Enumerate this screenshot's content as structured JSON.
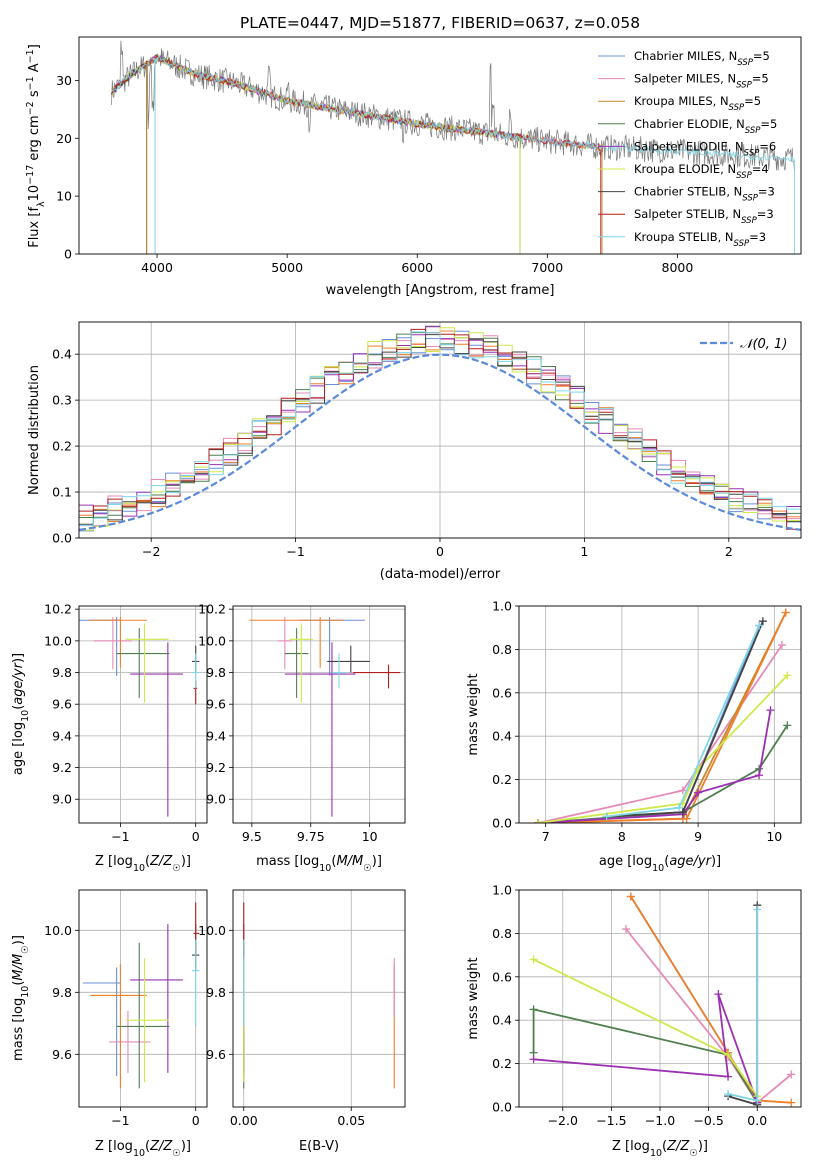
{
  "title": "PLATE=0447, MJD=51877, FIBERID=0637, z=0.058",
  "colors": {
    "Chabrier MILES": "#6a8fd6",
    "Salpeter MILES": "#e68ab8",
    "Kroupa MILES": "#c68a2e",
    "Chabrier ELODIE": "#4f7f4f",
    "Salpeter ELODIE": "#9b30b2",
    "Kroupa ELODIE": "#cfe84a",
    "Chabrier STELIB": "#444444",
    "Salpeter STELIB": "#b01e1e",
    "Kroupa STELIB": "#7fd6e6",
    "orange": "#f07f2a",
    "normal": "#5b8ad8"
  },
  "chart_data": [
    {
      "id": "spectrum",
      "type": "line",
      "xlabel": "wavelength [Angstrom, rest frame]",
      "ylabel": "Flux [f_λ 10^-17 erg cm^-2 s^-1 A^-1]",
      "xlim": [
        3400,
        8950
      ],
      "ylim": [
        0,
        37.5
      ],
      "xticks": [
        4000,
        5000,
        6000,
        7000,
        8000
      ],
      "yticks": [
        0,
        10,
        20,
        30
      ],
      "grid": false,
      "legend_position": "top-right",
      "legend": [
        {
          "model": "Chabrier MILES",
          "nssp": "5"
        },
        {
          "model": "Salpeter MILES",
          "nssp": "5"
        },
        {
          "model": "Kroupa MILES",
          "nssp": "5"
        },
        {
          "model": "Chabrier ELODIE",
          "nssp": "5"
        },
        {
          "model": "Salpeter ELODIE",
          "nssp": "6"
        },
        {
          "model": "Kroupa ELODIE",
          "nssp": "4"
        },
        {
          "model": "Chabrier STELIB",
          "nssp": "3"
        },
        {
          "model": "Salpeter STELIB",
          "nssp": "3"
        },
        {
          "model": "Kroupa STELIB",
          "nssp": "3"
        }
      ],
      "continuum": {
        "x": [
          3650,
          3800,
          4000,
          4300,
          4600,
          5000,
          5500,
          6000,
          6500,
          7000,
          7400,
          8000,
          8500,
          8900
        ],
        "y": [
          28,
          31,
          34,
          31,
          29.5,
          26.5,
          24.5,
          22.5,
          21,
          19.5,
          18.5,
          17.8,
          17,
          16.5
        ]
      },
      "model_ranges": [
        [
          3650,
          7420
        ],
        [
          3650,
          7420
        ],
        [
          3650,
          7420
        ],
        [
          3650,
          6790
        ],
        [
          3650,
          6790
        ],
        [
          3650,
          6790
        ],
        [
          3650,
          3920
        ],
        [
          3650,
          7410
        ],
        [
          3650,
          8900
        ]
      ]
    },
    {
      "id": "residuals",
      "type": "step",
      "xlabel": "(data-model)/error",
      "ylabel": "Normed distribution",
      "xlim": [
        -2.5,
        2.5
      ],
      "ylim": [
        0,
        0.47
      ],
      "xticks": [
        -2,
        -1,
        0,
        1,
        2
      ],
      "yticks": [
        0.0,
        0.1,
        0.2,
        0.3,
        0.4
      ],
      "grid": true,
      "legend": "N(0,1)"
    },
    {
      "id": "age_vs_Z",
      "type": "errorbar",
      "xlabel": "Z [log10(Z/Z☉)]",
      "ylabel": "age  [log10(age/yr)]",
      "xlim": [
        -1.55,
        0.15
      ],
      "ylim": [
        8.85,
        10.22
      ],
      "xticks": [
        -1,
        0
      ],
      "yticks": [
        9.0,
        9.2,
        9.4,
        9.6,
        9.8,
        10.0,
        10.2
      ],
      "points": [
        {
          "x": -1.05,
          "xe": [
            0.5,
            0.05
          ],
          "y": 10.13,
          "ye": [
            0.35,
            0.02
          ],
          "c": "Chabrier MILES"
        },
        {
          "x": -1.1,
          "xe": [
            0.25,
            0.25
          ],
          "y": 10.0,
          "ye": [
            0.18,
            0.15
          ],
          "c": "Salpeter MILES"
        },
        {
          "x": -1.0,
          "xe": [
            0.42,
            0.35
          ],
          "y": 10.13,
          "ye": [
            0.3,
            0.02
          ],
          "c": "orange"
        },
        {
          "x": -0.75,
          "xe": [
            0.3,
            0.4
          ],
          "y": 9.92,
          "ye": [
            0.28,
            0.16
          ],
          "c": "Chabrier ELODIE"
        },
        {
          "x": -0.37,
          "xe": [
            0.5,
            0.2
          ],
          "y": 9.79,
          "ye": [
            0.9,
            0.2
          ],
          "c": "Salpeter ELODIE"
        },
        {
          "x": -0.68,
          "xe": [
            0.25,
            0.32
          ],
          "y": 10.01,
          "ye": [
            0.4,
            0.1
          ],
          "c": "Kroupa ELODIE"
        },
        {
          "x": 0.0,
          "xe": [
            0.05,
            0.05
          ],
          "y": 9.87,
          "ye": [
            0.07,
            0.1
          ],
          "c": "Chabrier STELIB"
        },
        {
          "x": 0.0,
          "xe": [
            0.03,
            0.02
          ],
          "y": 9.7,
          "ye": [
            0.1,
            0.05
          ],
          "c": "Salpeter STELIB"
        },
        {
          "x": 0.0,
          "xe": [
            0.05,
            0.05
          ],
          "y": 9.8,
          "ye": [
            0.1,
            0.12
          ],
          "c": "Kroupa STELIB"
        }
      ]
    },
    {
      "id": "age_vs_mass",
      "type": "errorbar",
      "xlabel": "mass [log10(M/M☉)]",
      "ylabel": "",
      "xlim": [
        9.42,
        10.15
      ],
      "ylim": [
        8.85,
        10.22
      ],
      "xticks": [
        9.5,
        9.75,
        10.0
      ],
      "yticks": [
        9.0,
        9.2,
        9.4,
        9.6,
        9.8,
        10.0,
        10.2
      ],
      "points": [
        {
          "x": 9.83,
          "xe": [
            0.13,
            0.15
          ],
          "y": 10.13,
          "ye": [
            0.35,
            0.02
          ],
          "c": "Chabrier MILES"
        },
        {
          "x": 9.64,
          "xe": [
            0.03,
            0.03
          ],
          "y": 10.0,
          "ye": [
            0.18,
            0.15
          ],
          "c": "Salpeter MILES"
        },
        {
          "x": 9.79,
          "xe": [
            0.3,
            0.1
          ],
          "y": 10.13,
          "ye": [
            0.3,
            0.02
          ],
          "c": "orange"
        },
        {
          "x": 9.69,
          "xe": [
            0.05,
            0.05
          ],
          "y": 9.92,
          "ye": [
            0.28,
            0.16
          ],
          "c": "Chabrier ELODIE"
        },
        {
          "x": 9.84,
          "xe": [
            0.2,
            0.1
          ],
          "y": 9.79,
          "ye": [
            0.9,
            0.2
          ],
          "c": "Salpeter ELODIE"
        },
        {
          "x": 9.71,
          "xe": [
            0.05,
            0.05
          ],
          "y": 10.01,
          "ye": [
            0.4,
            0.1
          ],
          "c": "Kroupa ELODIE"
        },
        {
          "x": 9.92,
          "xe": [
            0.1,
            0.08
          ],
          "y": 9.87,
          "ye": [
            0.07,
            0.1
          ],
          "c": "Chabrier STELIB"
        },
        {
          "x": 10.08,
          "xe": [
            0.15,
            0.05
          ],
          "y": 9.8,
          "ye": [
            0.1,
            0.05
          ],
          "c": "Salpeter STELIB"
        },
        {
          "x": 9.87,
          "xe": [
            0.03,
            0.03
          ],
          "y": 9.8,
          "ye": [
            0.1,
            0.12
          ],
          "c": "Kroupa STELIB"
        }
      ]
    },
    {
      "id": "mw_vs_age",
      "type": "line",
      "xlabel": "age  [log10(age/yr)]",
      "ylabel": "mass weight",
      "xlim": [
        6.65,
        10.35
      ],
      "ylim": [
        0,
        1
      ],
      "xticks": [
        7,
        8,
        9,
        10
      ],
      "yticks": [
        0.0,
        0.2,
        0.4,
        0.6,
        0.8,
        1.0
      ],
      "grid": true,
      "series": [
        {
          "c": "Chabrier MILES",
          "x": [
            6.9,
            8.8,
            9.8
          ],
          "y": [
            0.0,
            0.05,
            0.91
          ]
        },
        {
          "c": "Salpeter MILES",
          "x": [
            6.9,
            8.8,
            10.1
          ],
          "y": [
            0.0,
            0.15,
            0.82
          ]
        },
        {
          "c": "Kroupa MILES",
          "x": [
            6.9,
            8.8,
            10.15
          ],
          "y": [
            0.0,
            0.02,
            0.97
          ]
        },
        {
          "c": "orange",
          "x": [
            6.9,
            8.85,
            10.15
          ],
          "y": [
            0.0,
            0.02,
            0.97
          ]
        },
        {
          "c": "Chabrier ELODIE",
          "x": [
            6.9,
            8.8,
            9.8,
            10.17
          ],
          "y": [
            0.0,
            0.05,
            0.25,
            0.45
          ]
        },
        {
          "c": "Salpeter ELODIE",
          "x": [
            6.9,
            8.8,
            9.0,
            9.8,
            9.95
          ],
          "y": [
            0.0,
            0.04,
            0.14,
            0.22,
            0.52
          ]
        },
        {
          "c": "Kroupa ELODIE",
          "x": [
            6.9,
            8.8,
            9.0,
            10.17
          ],
          "y": [
            0.0,
            0.09,
            0.25,
            0.68
          ]
        },
        {
          "c": "Chabrier STELIB",
          "x": [
            7.8,
            8.8,
            9.85
          ],
          "y": [
            0.03,
            0.05,
            0.93
          ]
        },
        {
          "c": "Kroupa STELIB",
          "x": [
            7.8,
            8.75,
            9.8
          ],
          "y": [
            0.03,
            0.07,
            0.91
          ]
        }
      ]
    },
    {
      "id": "mass_vs_Z",
      "type": "errorbar",
      "xlabel": "Z [log10(Z/Z☉)]",
      "ylabel": "mass [log10(M/M☉)]",
      "xlim": [
        -1.55,
        0.15
      ],
      "ylim": [
        9.43,
        10.13
      ],
      "xticks": [
        -1,
        0
      ],
      "yticks": [
        9.6,
        9.8,
        10.0
      ],
      "points": [
        {
          "x": -1.05,
          "xe": [
            0.45,
            0.05
          ],
          "y": 9.83,
          "ye": [
            0.3,
            0.05
          ],
          "c": "Chabrier MILES"
        },
        {
          "x": -0.9,
          "xe": [
            0.25,
            0.3
          ],
          "y": 9.64,
          "ye": [
            0.1,
            0.1
          ],
          "c": "Salpeter MILES"
        },
        {
          "x": -1.0,
          "xe": [
            0.4,
            0.35
          ],
          "y": 9.79,
          "ye": [
            0.3,
            0.1
          ],
          "c": "orange"
        },
        {
          "x": -0.75,
          "xe": [
            0.3,
            0.4
          ],
          "y": 9.69,
          "ye": [
            0.2,
            0.27
          ],
          "c": "Chabrier ELODIE"
        },
        {
          "x": -0.37,
          "xe": [
            0.5,
            0.2
          ],
          "y": 9.84,
          "ye": [
            0.3,
            0.18
          ],
          "c": "Salpeter ELODIE"
        },
        {
          "x": -0.68,
          "xe": [
            0.25,
            0.32
          ],
          "y": 9.71,
          "ye": [
            0.2,
            0.2
          ],
          "c": "Kroupa ELODIE"
        },
        {
          "x": 0.0,
          "xe": [
            0.05,
            0.05
          ],
          "y": 9.92,
          "ye": [
            0.05,
            0.1
          ],
          "c": "Chabrier STELIB"
        },
        {
          "x": 0.0,
          "xe": [
            0.03,
            0.05
          ],
          "y": 9.99,
          "ye": [
            0.07,
            0.1
          ],
          "c": "Salpeter STELIB"
        },
        {
          "x": 0.0,
          "xe": [
            0.05,
            0.05
          ],
          "y": 9.87,
          "ye": [
            0.18,
            0.1
          ],
          "c": "Kroupa STELIB"
        }
      ]
    },
    {
      "id": "mass_vs_ebv",
      "type": "errorbar",
      "xlabel": "E(B-V)",
      "ylabel": "",
      "xlim": [
        -0.005,
        0.075
      ],
      "ylim": [
        9.43,
        10.13
      ],
      "xticks": [
        0.0,
        0.05
      ],
      "yticks": [
        9.6,
        9.8,
        10.0
      ],
      "points": [
        {
          "x": 0.0,
          "y": 9.83,
          "ye": [
            0.3,
            0.05
          ],
          "c": "Chabrier MILES"
        },
        {
          "x": 0.0,
          "y": 9.64,
          "ye": [
            0.1,
            0.1
          ],
          "c": "Salpeter MILES"
        },
        {
          "x": 0.07,
          "y": 9.79,
          "ye": [
            0.3,
            0.1
          ],
          "c": "orange"
        },
        {
          "x": 0.0,
          "y": 9.69,
          "ye": [
            0.2,
            0.27
          ],
          "c": "Chabrier ELODIE"
        },
        {
          "x": 0.0,
          "y": 9.84,
          "ye": [
            0.3,
            0.18
          ],
          "c": "Salpeter ELODIE"
        },
        {
          "x": 0.0,
          "y": 9.71,
          "ye": [
            0.2,
            0.2
          ],
          "c": "Kroupa ELODIE"
        },
        {
          "x": 0.07,
          "y": 9.82,
          "ye": [
            0.1,
            0.09
          ],
          "c": "Salpeter MILES"
        },
        {
          "x": 0.0,
          "y": 9.99,
          "ye": [
            0.07,
            0.1
          ],
          "c": "Salpeter STELIB"
        },
        {
          "x": 0.0,
          "y": 9.87,
          "ye": [
            0.18,
            0.1
          ],
          "c": "Kroupa STELIB"
        }
      ]
    },
    {
      "id": "mw_vs_Z",
      "type": "line",
      "xlabel": "Z [log10(Z/Z☉)]",
      "ylabel": "mass weight",
      "xlim": [
        -2.45,
        0.45
      ],
      "ylim": [
        0,
        1
      ],
      "xticks": [
        -2.0,
        -1.5,
        -1.0,
        -0.5,
        0.0
      ],
      "yticks": [
        0.0,
        0.2,
        0.4,
        0.6,
        0.8,
        1.0
      ],
      "grid": true,
      "series": [
        {
          "c": "Chabrier MILES",
          "x": [
            -1.3,
            -0.3,
            0.0
          ],
          "y": [
            0.97,
            0.25,
            0.02
          ]
        },
        {
          "c": "Salpeter MILES",
          "x": [
            -1.35,
            -0.3,
            0.0,
            0.35
          ],
          "y": [
            0.82,
            0.23,
            0.02,
            0.15
          ]
        },
        {
          "c": "orange",
          "x": [
            -1.3,
            -0.3,
            0.0,
            0.35
          ],
          "y": [
            0.97,
            0.25,
            0.03,
            0.02
          ]
        },
        {
          "c": "Chabrier ELODIE",
          "x": [
            -2.3,
            -2.3,
            -0.3,
            0.0
          ],
          "y": [
            0.25,
            0.45,
            0.24,
            0.02
          ]
        },
        {
          "c": "Salpeter ELODIE",
          "x": [
            -2.3,
            -0.3,
            -0.4,
            0.0
          ],
          "y": [
            0.22,
            0.14,
            0.52,
            0.02
          ]
        },
        {
          "c": "Kroupa ELODIE",
          "x": [
            -2.3,
            -0.3,
            0.0
          ],
          "y": [
            0.68,
            0.24,
            0.05
          ]
        },
        {
          "c": "Chabrier STELIB",
          "x": [
            -0.3,
            0.0,
            0.0
          ],
          "y": [
            0.05,
            0.01,
            0.93
          ]
        },
        {
          "c": "Kroupa STELIB",
          "x": [
            -0.3,
            0.0,
            0.0
          ],
          "y": [
            0.06,
            0.03,
            0.91
          ]
        }
      ]
    }
  ]
}
